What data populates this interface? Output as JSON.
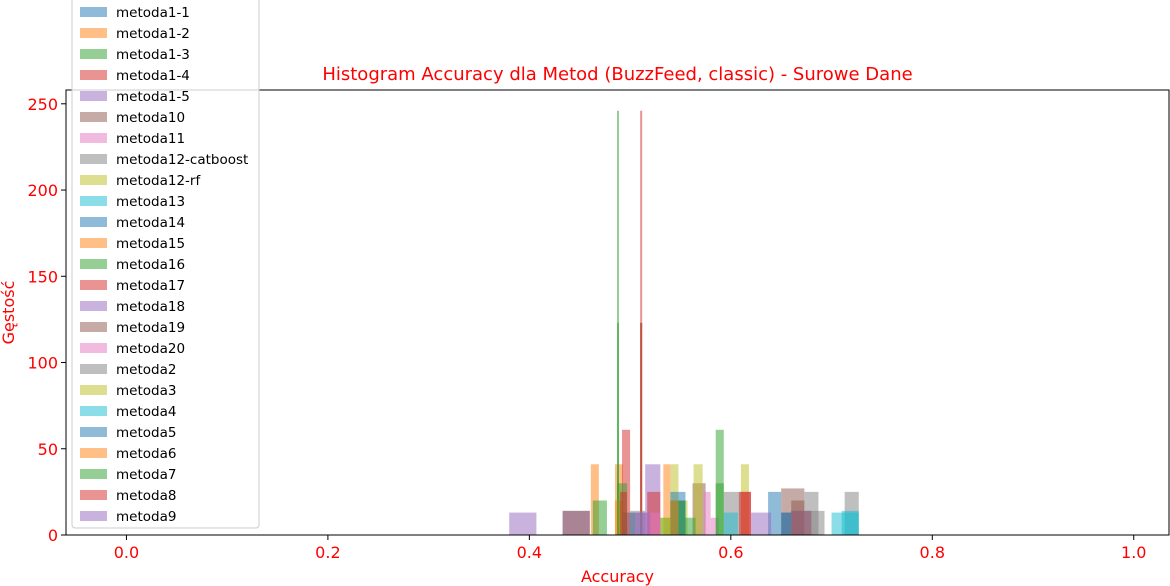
{
  "chart_data": {
    "type": "bar",
    "title": "Histogram Accuracy dla Metod (BuzzFeed, classic) - Surowe Dane",
    "xlabel": "Accuracy",
    "ylabel": "Gęstość",
    "xlim": [
      -0.06,
      1.035
    ],
    "ylim": [
      0,
      258
    ],
    "xticks": [
      "0.0",
      "0.2",
      "0.4",
      "0.6",
      "0.8",
      "1.0"
    ],
    "yticks": [
      "0",
      "50",
      "100",
      "150",
      "200",
      "250"
    ],
    "text_color": "#ff0000",
    "grid": false,
    "legend_position": "upper left",
    "series": [
      {
        "name": "metoda1-1",
        "color": "#1f77b4",
        "bars": [
          {
            "x0": 0.637,
            "x1": 0.65,
            "h": 25
          },
          {
            "x0": 0.65,
            "x1": 0.66,
            "h": 13
          }
        ]
      },
      {
        "name": "metoda1-2",
        "color": "#ff7f0e",
        "bars": [
          {
            "x0": 0.461,
            "x1": 0.469,
            "h": 41
          },
          {
            "x0": 0.485,
            "x1": 0.493,
            "h": 41
          },
          {
            "x0": 0.533,
            "x1": 0.54,
            "h": 41
          }
        ]
      },
      {
        "name": "metoda1-3",
        "color": "#2ca02c",
        "bars": [
          {
            "x0": 0.487,
            "x1": 0.489,
            "h": 246
          },
          {
            "x0": 0.487,
            "x1": 0.489,
            "h": 123
          },
          {
            "x0": 0.51,
            "x1": 0.512,
            "h": 123
          }
        ]
      },
      {
        "name": "metoda1-4",
        "color": "#d62728",
        "bars": [
          {
            "x0": 0.51,
            "x1": 0.512,
            "h": 246
          },
          {
            "x0": 0.51,
            "x1": 0.512,
            "h": 123
          }
        ]
      },
      {
        "name": "metoda1-5",
        "color": "#9467bd",
        "bars": [
          {
            "x0": 0.515,
            "x1": 0.53,
            "h": 41
          },
          {
            "x0": 0.5,
            "x1": 0.515,
            "h": 13
          }
        ]
      },
      {
        "name": "metoda10",
        "color": "#8c564b",
        "bars": [
          {
            "x0": 0.562,
            "x1": 0.575,
            "h": 30
          },
          {
            "x0": 0.65,
            "x1": 0.673,
            "h": 27
          },
          {
            "x0": 0.66,
            "x1": 0.673,
            "h": 20
          }
        ]
      },
      {
        "name": "metoda11",
        "color": "#e377c2",
        "bars": [
          {
            "x0": 0.573,
            "x1": 0.58,
            "h": 25
          },
          {
            "x0": 0.58,
            "x1": 0.588,
            "h": 10
          }
        ]
      },
      {
        "name": "metoda12-catboost",
        "color": "#7f7f7f",
        "bars": [
          {
            "x0": 0.593,
            "x1": 0.61,
            "h": 25
          },
          {
            "x0": 0.673,
            "x1": 0.687,
            "h": 25
          },
          {
            "x0": 0.713,
            "x1": 0.727,
            "h": 25
          }
        ]
      },
      {
        "name": "metoda12-rf",
        "color": "#bcbd22",
        "bars": [
          {
            "x0": 0.54,
            "x1": 0.548,
            "h": 41
          },
          {
            "x0": 0.563,
            "x1": 0.572,
            "h": 41
          },
          {
            "x0": 0.61,
            "x1": 0.618,
            "h": 41
          },
          {
            "x0": 0.548,
            "x1": 0.557,
            "h": 20
          }
        ]
      },
      {
        "name": "metoda13",
        "color": "#17becf",
        "bars": [
          {
            "x0": 0.593,
            "x1": 0.607,
            "h": 13
          },
          {
            "x0": 0.7,
            "x1": 0.727,
            "h": 13
          }
        ]
      },
      {
        "name": "metoda14",
        "color": "#1f77b4",
        "bars": [
          {
            "x0": 0.54,
            "x1": 0.555,
            "h": 25
          },
          {
            "x0": 0.54,
            "x1": 0.555,
            "h": 20
          },
          {
            "x0": 0.492,
            "x1": 0.505,
            "h": 13
          }
        ]
      },
      {
        "name": "metoda15",
        "color": "#ff7f0e",
        "bars": [
          {
            "x0": 0.485,
            "x1": 0.493,
            "h": 20
          }
        ]
      },
      {
        "name": "metoda16",
        "color": "#2ca02c",
        "bars": [
          {
            "x0": 0.585,
            "x1": 0.593,
            "h": 61
          },
          {
            "x0": 0.463,
            "x1": 0.477,
            "h": 20
          },
          {
            "x0": 0.585,
            "x1": 0.593,
            "h": 30
          },
          {
            "x0": 0.54,
            "x1": 0.555,
            "h": 20
          },
          {
            "x0": 0.53,
            "x1": 0.54,
            "h": 10
          },
          {
            "x0": 0.555,
            "x1": 0.565,
            "h": 10
          }
        ]
      },
      {
        "name": "metoda17",
        "color": "#d62728",
        "bars": [
          {
            "x0": 0.492,
            "x1": 0.5,
            "h": 61
          },
          {
            "x0": 0.608,
            "x1": 0.62,
            "h": 25
          },
          {
            "x0": 0.517,
            "x1": 0.53,
            "h": 25
          }
        ]
      },
      {
        "name": "metoda18",
        "color": "#9467bd",
        "bars": [
          {
            "x0": 0.38,
            "x1": 0.407,
            "h": 13
          },
          {
            "x0": 0.433,
            "x1": 0.46,
            "h": 14
          },
          {
            "x0": 0.66,
            "x1": 0.68,
            "h": 14
          },
          {
            "x0": 0.62,
            "x1": 0.64,
            "h": 13
          }
        ]
      },
      {
        "name": "metoda19",
        "color": "#8c564b",
        "bars": [
          {
            "x0": 0.433,
            "x1": 0.46,
            "h": 14
          },
          {
            "x0": 0.66,
            "x1": 0.68,
            "h": 14
          }
        ]
      },
      {
        "name": "metoda20",
        "color": "#e377c2",
        "bars": [
          {
            "x0": 0.515,
            "x1": 0.53,
            "h": 13
          }
        ]
      },
      {
        "name": "metoda2",
        "color": "#7f7f7f",
        "bars": [
          {
            "x0": 0.68,
            "x1": 0.693,
            "h": 14
          },
          {
            "x0": 0.5,
            "x1": 0.515,
            "h": 14
          }
        ]
      },
      {
        "name": "metoda3",
        "color": "#bcbd22",
        "bars": [
          {
            "x0": 0.53,
            "x1": 0.54,
            "h": 10
          }
        ]
      },
      {
        "name": "metoda4",
        "color": "#17becf",
        "bars": [
          {
            "x0": 0.71,
            "x1": 0.727,
            "h": 14
          }
        ]
      },
      {
        "name": "metoda5",
        "color": "#1f77b4",
        "bars": [
          {
            "x0": 0.65,
            "x1": 0.66,
            "h": 13
          }
        ]
      },
      {
        "name": "metoda6",
        "color": "#ff7f0e",
        "bars": [
          {
            "x0": 0.54,
            "x1": 0.548,
            "h": 20
          }
        ]
      },
      {
        "name": "metoda7",
        "color": "#2ca02c",
        "bars": [
          {
            "x0": 0.487,
            "x1": 0.497,
            "h": 30
          }
        ]
      },
      {
        "name": "metoda8",
        "color": "#d62728",
        "bars": [
          {
            "x0": 0.49,
            "x1": 0.497,
            "h": 25
          },
          {
            "x0": 0.61,
            "x1": 0.62,
            "h": 25
          }
        ]
      },
      {
        "name": "metoda9",
        "color": "#9467bd",
        "bars": [
          {
            "x0": 0.505,
            "x1": 0.52,
            "h": 13
          }
        ]
      }
    ]
  }
}
